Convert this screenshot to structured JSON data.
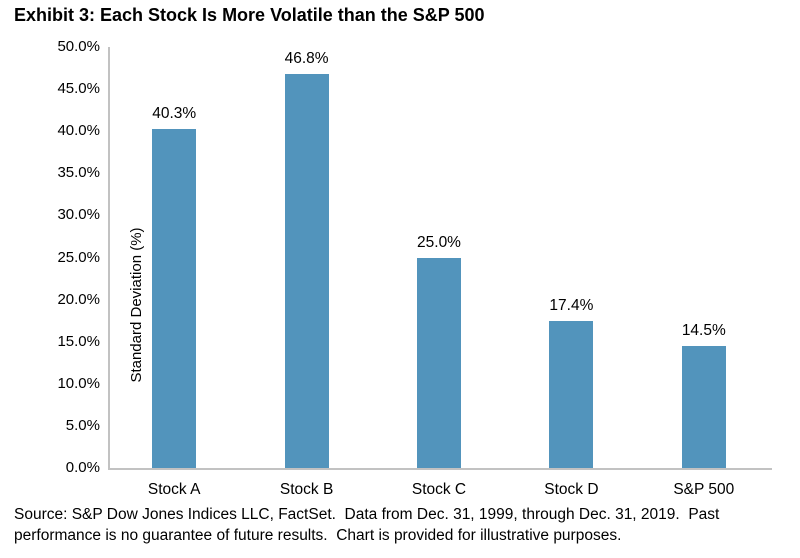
{
  "chart_data": {
    "type": "bar",
    "title": "Exhibit 3: Each Stock Is More Volatile than the S&P 500",
    "categories": [
      "Stock A",
      "Stock B",
      "Stock C",
      "Stock D",
      "S&P 500"
    ],
    "values": [
      40.3,
      46.8,
      25.0,
      17.4,
      14.5
    ],
    "data_labels": [
      "40.3%",
      "46.8%",
      "25.0%",
      "17.4%",
      "14.5%"
    ],
    "xlabel": "",
    "ylabel": "Standard Deviation (%)",
    "ylim": [
      0,
      50
    ],
    "ytick_step": 5,
    "ytick_labels": [
      "0.0%",
      "5.0%",
      "10.0%",
      "15.0%",
      "20.0%",
      "25.0%",
      "30.0%",
      "35.0%",
      "40.0%",
      "45.0%",
      "50.0%"
    ],
    "grid": false,
    "legend": "none",
    "bar_color": "#5294BC",
    "axis_line_color": "#c2c2c2"
  },
  "source": {
    "lines": [
      "Source: S&P Dow Jones Indices LLC, FactSet.  Data from Dec. 31, 1999, through Dec. 31, 2019.  Past",
      "performance is no guarantee of future results.  Chart is provided for illustrative purposes."
    ]
  }
}
